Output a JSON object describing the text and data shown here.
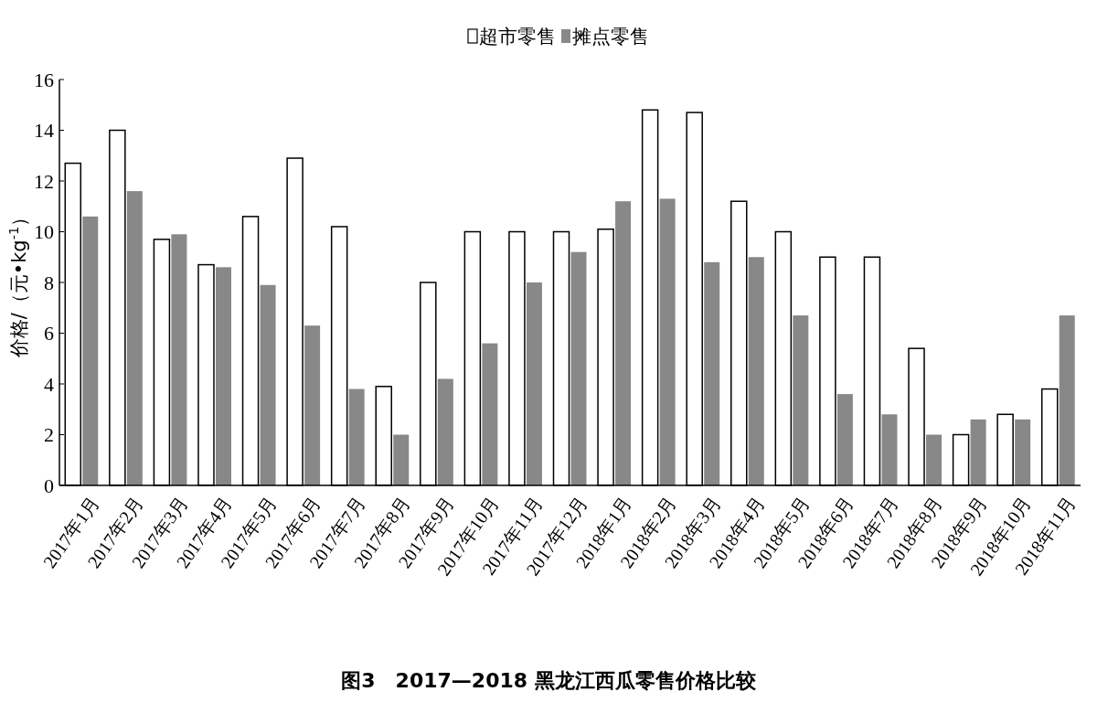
{
  "chart_data": {
    "type": "bar",
    "title": "图3　2017—2018 黑龙江西瓜零售价格比较",
    "ylabel": "价格/（元•kg$^{-1}$）",
    "categories": [
      "2017年1月",
      "2017年2月",
      "2017年3月",
      "2017年4月",
      "2017年5月",
      "2017年6月",
      "2017年7月",
      "2017年8月",
      "2017年9月",
      "2017年10月",
      "2017年11月",
      "2017年12月",
      "2018年1月",
      "2018年2月",
      "2018年3月",
      "2018年4月",
      "2018年5月",
      "2018年6月",
      "2018年7月",
      "2018年8月",
      "2018年9月",
      "2018年10月",
      "2018年11月"
    ],
    "series": [
      {
        "name": "超市零售",
        "color": "#ffffff",
        "values": [
          12.7,
          14.0,
          9.7,
          8.7,
          10.6,
          12.9,
          10.2,
          3.9,
          8.0,
          10.0,
          10.0,
          10.0,
          10.1,
          14.8,
          14.7,
          11.2,
          10.0,
          9.0,
          9.0,
          5.4,
          2.0,
          2.8,
          3.8
        ]
      },
      {
        "name": "摊点零售",
        "color": "#888888",
        "values": [
          10.6,
          11.6,
          9.9,
          8.6,
          7.9,
          6.3,
          3.8,
          2.0,
          4.2,
          5.6,
          8.0,
          9.2,
          11.2,
          11.3,
          8.8,
          9.0,
          6.7,
          3.6,
          2.8,
          2.0,
          2.6,
          2.6,
          6.7
        ]
      }
    ],
    "ylim": [
      0,
      16
    ],
    "yticks": [
      0,
      2,
      4,
      6,
      8,
      10,
      12,
      14,
      16
    ],
    "legend": "top"
  }
}
